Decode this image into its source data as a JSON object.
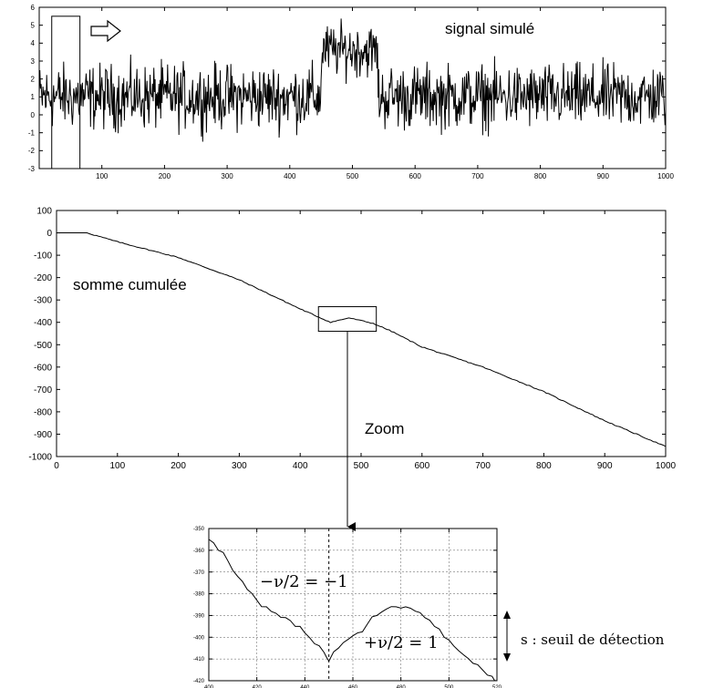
{
  "chart_data": [
    {
      "type": "line",
      "annotation": "signal simulé",
      "xlim": [
        0,
        1000
      ],
      "ylim": [
        -3,
        6
      ],
      "xticks": [
        100,
        200,
        300,
        400,
        500,
        600,
        700,
        800,
        900,
        1000
      ],
      "yticks": [
        -3,
        -2,
        -1,
        0,
        1,
        2,
        3,
        4,
        5,
        6
      ],
      "segments": [
        {
          "x_start": 0,
          "x_end": 450,
          "mean": 1,
          "spread": 1.1
        },
        {
          "x_start": 450,
          "x_end": 540,
          "mean": 3.6,
          "spread": 0.9
        },
        {
          "x_start": 540,
          "x_end": 1000,
          "mean": 1,
          "spread": 1.1
        }
      ],
      "window_box": {
        "x": [
          20,
          65
        ],
        "y": [
          -3,
          5.5
        ]
      },
      "grid": false
    },
    {
      "type": "line",
      "annotation": "somme cumulée",
      "xlim": [
        0,
        1000
      ],
      "ylim": [
        -1000,
        100
      ],
      "xticks": [
        0,
        100,
        200,
        300,
        400,
        500,
        600,
        700,
        800,
        900,
        1000
      ],
      "yticks": [
        100,
        0,
        -100,
        -200,
        -300,
        -400,
        -500,
        -600,
        -700,
        -800,
        -900,
        -1000
      ],
      "x": [
        0,
        50,
        100,
        200,
        300,
        400,
        450,
        480,
        520,
        550,
        600,
        700,
        800,
        900,
        1000
      ],
      "y": [
        0,
        0,
        -40,
        -110,
        -210,
        -340,
        -400,
        -380,
        -405,
        -440,
        -510,
        -600,
        -710,
        -840,
        -955
      ],
      "zoom_box": {
        "x": [
          430,
          525
        ],
        "y": [
          -440,
          -330
        ]
      },
      "zoom_label": "Zoom",
      "grid": false
    },
    {
      "type": "line",
      "xlim": [
        400,
        520
      ],
      "ylim": [
        -420,
        -350
      ],
      "xticks": [
        400,
        420,
        440,
        460,
        480,
        500,
        520
      ],
      "yticks": [
        -350,
        -360,
        -370,
        -380,
        -390,
        -400,
        -410,
        -420
      ],
      "x": [
        400,
        404,
        408,
        412,
        416,
        420,
        424,
        428,
        432,
        436,
        440,
        444,
        448,
        450,
        454,
        458,
        462,
        466,
        470,
        474,
        478,
        482,
        486,
        490,
        494,
        498,
        502,
        506,
        510,
        514,
        518,
        520
      ],
      "y": [
        -355,
        -360,
        -365,
        -372,
        -378,
        -383,
        -386,
        -389,
        -391,
        -395,
        -398,
        -403,
        -407,
        -411,
        -405,
        -401,
        -398,
        -394,
        -390,
        -387,
        -386,
        -386,
        -388,
        -391,
        -395,
        -400,
        -404,
        -408,
        -412,
        -415,
        -418,
        -420
      ],
      "dashed_vline_x": 450,
      "annotations": [
        "−ν/2 = −1",
        "+ν/2 = 1"
      ],
      "threshold_label": "s : seuil de détection",
      "grid": true
    }
  ]
}
